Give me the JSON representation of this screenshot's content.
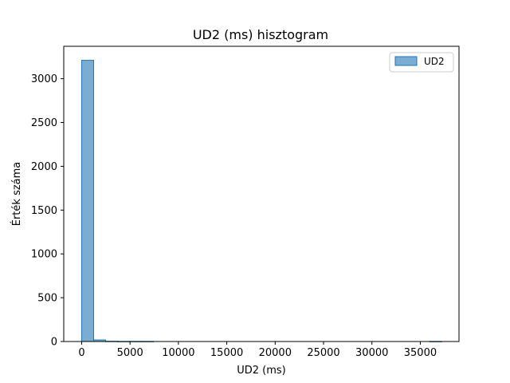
{
  "chart_data": {
    "type": "bar",
    "title": "UD2 (ms) hisztogram",
    "xlabel": "UD2 (ms)",
    "ylabel": "Érték száma",
    "xlim": [
      -1850,
      39000
    ],
    "ylim": [
      0,
      3370
    ],
    "xticks": [
      0,
      5000,
      10000,
      15000,
      20000,
      25000,
      30000,
      35000
    ],
    "xtick_labels": [
      "0",
      "5000",
      "10000",
      "15000",
      "20000",
      "25000",
      "30000",
      "35000"
    ],
    "yticks": [
      0,
      500,
      1000,
      1500,
      2000,
      2500,
      3000
    ],
    "ytick_labels": [
      "0",
      "500",
      "1000",
      "1500",
      "2000",
      "2500",
      "3000"
    ],
    "bin_start": 0,
    "bin_width": 1240,
    "series": [
      {
        "name": "UD2",
        "color": "#1f77b4",
        "bin_counts": [
          3210,
          18,
          3,
          1,
          1,
          1,
          0,
          0,
          0,
          0,
          0,
          0,
          0,
          0,
          0,
          0,
          0,
          0,
          0,
          0,
          0,
          0,
          0,
          0,
          0,
          0,
          0,
          0,
          0,
          1
        ]
      }
    ],
    "legend_position": "upper right",
    "grid": false
  }
}
